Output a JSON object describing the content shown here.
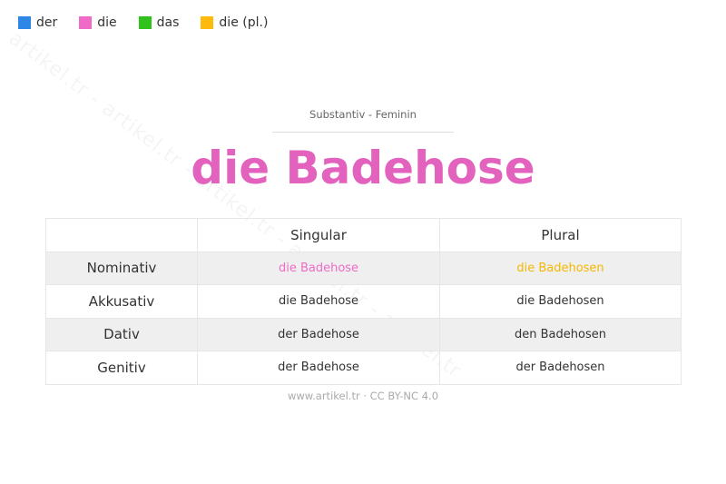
{
  "watermark": "artikel.tr - artikel.tr - artikel.tr - artikel.tr - artikel.tr",
  "legend": [
    {
      "label": "der",
      "color": "#2e86e6"
    },
    {
      "label": "die",
      "color": "#ef6bc6"
    },
    {
      "label": "das",
      "color": "#2fc21a"
    },
    {
      "label": "die (pl.)",
      "color": "#ffbb0d"
    }
  ],
  "subtitle": "Substantiv  -  Feminin",
  "title": "die Badehose",
  "title_color": "#e262bd",
  "table": {
    "headers": [
      "",
      "Singular",
      "Plural"
    ],
    "rows": [
      {
        "case": "Nominativ",
        "singular": "die Badehose",
        "plural": "die Badehosen"
      },
      {
        "case": "Akkusativ",
        "singular": "die Badehose",
        "plural": "die Badehosen"
      },
      {
        "case": "Dativ",
        "singular": "der Badehose",
        "plural": "den Badehosen"
      },
      {
        "case": "Genitiv",
        "singular": "der Badehose",
        "plural": "der Badehosen"
      }
    ],
    "nominativ_singular_color": "#ef6bc6",
    "nominativ_plural_color": "#f5b800"
  },
  "footer": "www.artikel.tr · CC BY-NC 4.0"
}
